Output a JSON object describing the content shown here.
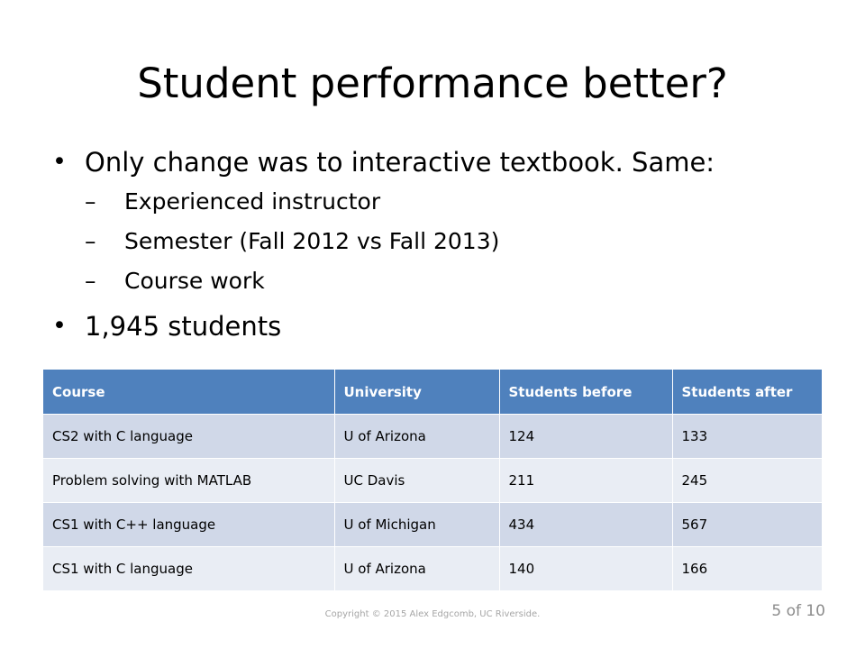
{
  "slide": {
    "title": "Student performance better?",
    "bullets": [
      {
        "text": "Only change was to interactive textbook. Same:",
        "sub": [
          "Experienced instructor",
          "Semester (Fall 2012 vs Fall 2013)",
          "Course work"
        ]
      },
      {
        "text": "1,945 students"
      }
    ],
    "bullet_glyph": "•",
    "dash_glyph": "–"
  },
  "table": {
    "headers": [
      "Course",
      "University",
      "Students before",
      "Students after"
    ],
    "rows": [
      [
        "CS2 with C language",
        "U of Arizona",
        "124",
        "133"
      ],
      [
        "Problem solving with MATLAB",
        "UC Davis",
        "211",
        "245"
      ],
      [
        "CS1 with C++ language",
        "U of Michigan",
        "434",
        "567"
      ],
      [
        "CS1 with C language",
        "U of Arizona",
        "140",
        "166"
      ]
    ]
  },
  "footer": {
    "copyright": "Copyright © 2015 Alex Edgcomb, UC Riverside.",
    "page": "5 of 10"
  },
  "colors": {
    "header_bg": "#4f81bd",
    "row_odd_bg": "#d0d8e8",
    "row_even_bg": "#e9edf4"
  }
}
